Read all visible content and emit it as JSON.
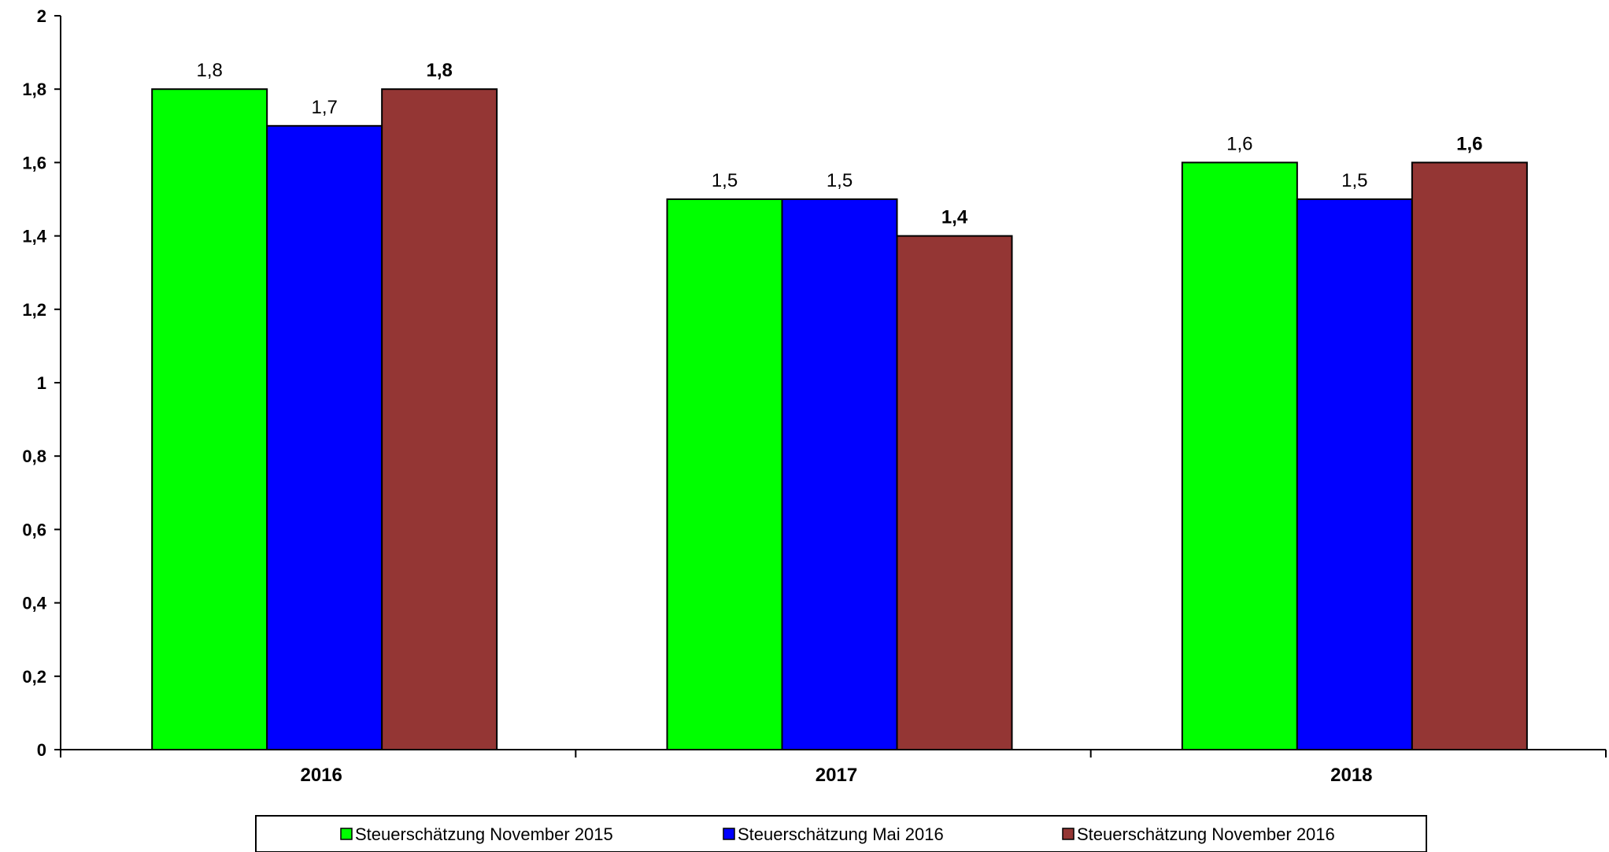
{
  "chart_data": {
    "type": "bar",
    "title": "",
    "xlabel": "",
    "ylabel": "",
    "ylim": [
      0,
      2
    ],
    "yticks": [
      0,
      0.2,
      0.4,
      0.6,
      0.8,
      1,
      1.2,
      1.4,
      1.6,
      1.8,
      2
    ],
    "ytick_labels": [
      "0",
      "0,2",
      "0,4",
      "0,6",
      "0,8",
      "1",
      "1,2",
      "1,4",
      "1,6",
      "1,8",
      "2"
    ],
    "categories": [
      "2016",
      "2017",
      "2018"
    ],
    "grid": false,
    "legend_position": "bottom",
    "series": [
      {
        "name": "Steuerschätzung November 2015",
        "color": "#00ff00",
        "values": [
          1.8,
          1.5,
          1.6
        ],
        "labels": [
          "1,8",
          "1,5",
          "1,6"
        ],
        "label_bold": false
      },
      {
        "name": "Steuerschätzung Mai 2016",
        "color": "#0000ff",
        "values": [
          1.7,
          1.5,
          1.5
        ],
        "labels": [
          "1,7",
          "1,5",
          "1,5"
        ],
        "label_bold": false
      },
      {
        "name": "Steuerschätzung November 2016",
        "color": "#943634",
        "values": [
          1.8,
          1.4,
          1.6
        ],
        "labels": [
          "1,8",
          "1,4",
          "1,6"
        ],
        "label_bold": true
      }
    ]
  }
}
